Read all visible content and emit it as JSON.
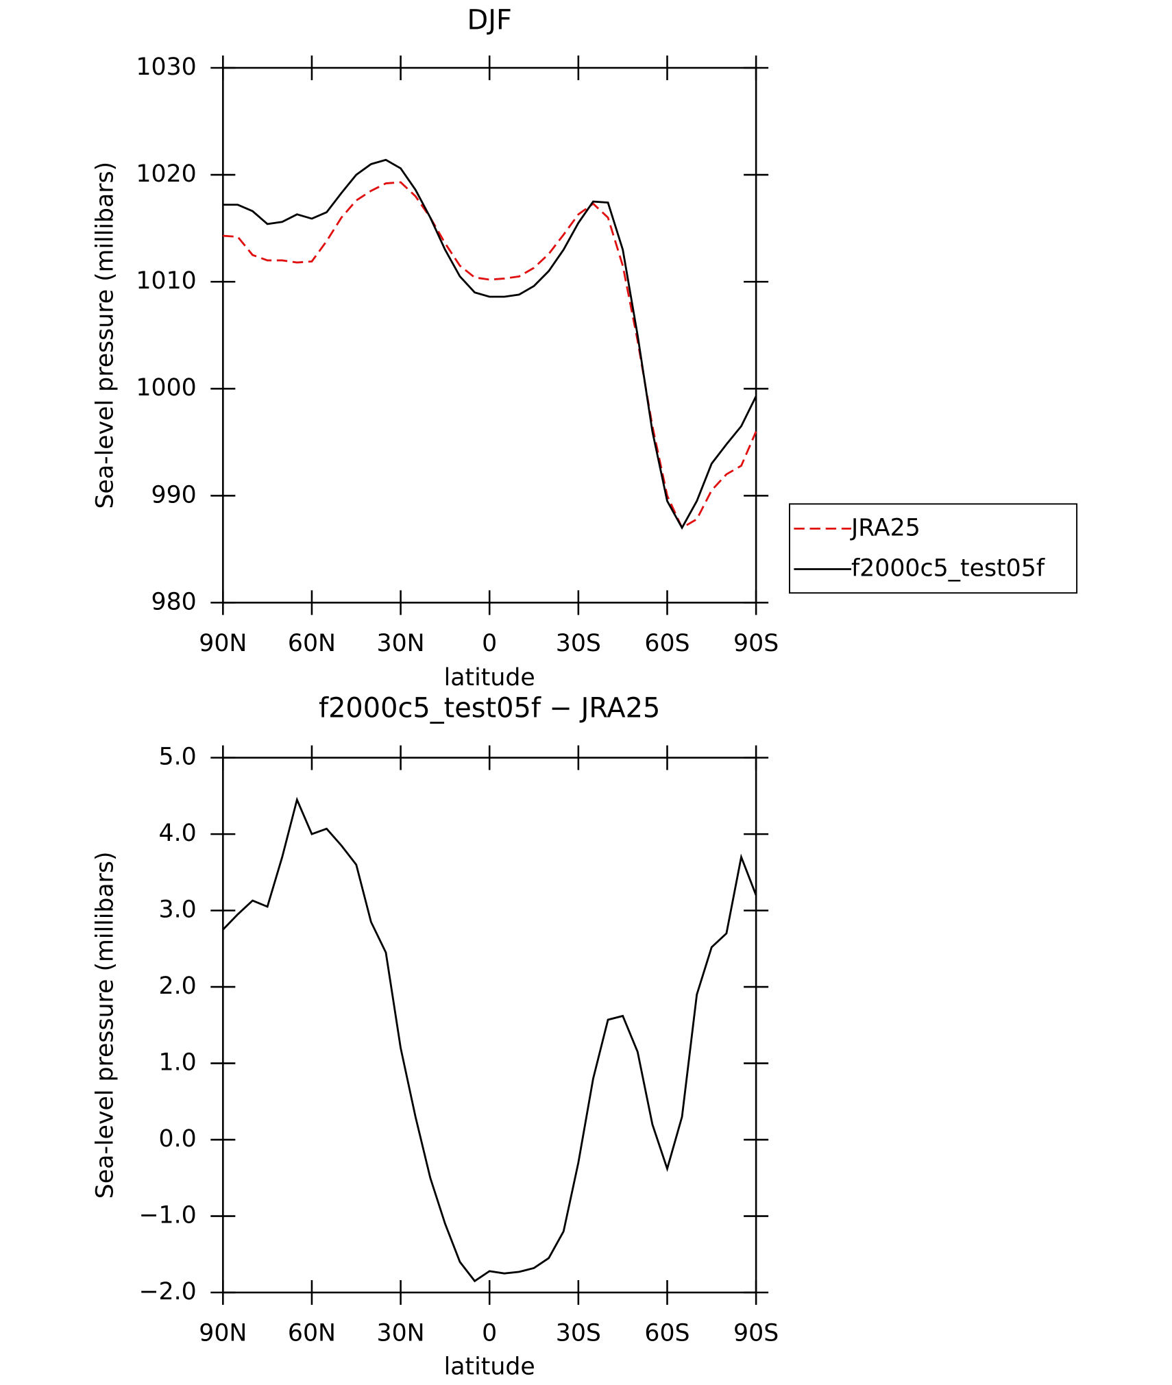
{
  "chart_data": [
    {
      "type": "line",
      "title": "DJF",
      "x_label": "latitude",
      "y_label": "Sea-level pressure (millibars)",
      "x": [
        90,
        85,
        80,
        75,
        70,
        65,
        60,
        55,
        50,
        45,
        40,
        35,
        30,
        25,
        20,
        15,
        10,
        5,
        0,
        -5,
        -10,
        -15,
        -20,
        -25,
        -30,
        -35,
        -40,
        -45,
        -50,
        -55,
        -60,
        -65,
        -70,
        -75,
        -80,
        -85,
        -90
      ],
      "xlim": [
        90,
        -90
      ],
      "xticks": [
        {
          "value": 90,
          "label": "90N"
        },
        {
          "value": 60,
          "label": "60N"
        },
        {
          "value": 30,
          "label": "30N"
        },
        0,
        {
          "value": -30,
          "label": "30S"
        },
        {
          "value": -60,
          "label": "60S"
        },
        {
          "value": -90,
          "label": "90S"
        }
      ],
      "ylim": [
        980,
        1030
      ],
      "yticks": [
        980,
        990,
        1000,
        1010,
        1020,
        1030
      ],
      "legend": "right",
      "series": [
        {
          "name": "JRA25",
          "color": "#e01010",
          "dash": true,
          "values": [
            1014.3,
            1014.2,
            1012.5,
            1012.0,
            1012.0,
            1011.8,
            1011.9,
            1013.8,
            1016.0,
            1017.6,
            1018.5,
            1019.2,
            1019.3,
            1018.0,
            1016.0,
            1013.6,
            1011.5,
            1010.4,
            1010.2,
            1010.3,
            1010.5,
            1011.3,
            1012.6,
            1014.4,
            1016.3,
            1017.3,
            1016.0,
            1011.5,
            1004.5,
            996.5,
            990.0,
            987.0,
            987.8,
            990.5,
            992.0,
            992.8,
            996.0
          ]
        },
        {
          "name": "f2000c5_test05f",
          "color": "#000000",
          "dash": false,
          "values": [
            1017.2,
            1017.2,
            1016.6,
            1015.4,
            1015.6,
            1016.3,
            1015.9,
            1016.5,
            1018.3,
            1020.0,
            1021.0,
            1021.4,
            1020.6,
            1018.6,
            1016.0,
            1013.0,
            1010.5,
            1009.0,
            1008.6,
            1008.6,
            1008.8,
            1009.6,
            1011.0,
            1013.0,
            1015.5,
            1017.5,
            1017.4,
            1013.0,
            1005.0,
            996.0,
            989.5,
            987.0,
            989.5,
            993.0,
            994.8,
            996.5,
            999.3
          ]
        }
      ]
    },
    {
      "type": "line",
      "title": "f2000c5_test05f − JRA25",
      "x_label": "latitude",
      "y_label": "Sea-level pressure (millibars)",
      "x": [
        90,
        85,
        80,
        75,
        70,
        65,
        60,
        55,
        50,
        45,
        40,
        35,
        30,
        25,
        20,
        15,
        10,
        5,
        0,
        -5,
        -10,
        -15,
        -20,
        -25,
        -30,
        -35,
        -40,
        -45,
        -50,
        -55,
        -60,
        -65,
        -70,
        -75,
        -80,
        -85,
        -90
      ],
      "xlim": [
        90,
        -90
      ],
      "xticks": [
        {
          "value": 90,
          "label": "90N"
        },
        {
          "value": 60,
          "label": "60N"
        },
        {
          "value": 30,
          "label": "30N"
        },
        0,
        {
          "value": -30,
          "label": "30S"
        },
        {
          "value": -60,
          "label": "60S"
        },
        {
          "value": -90,
          "label": "90S"
        }
      ],
      "ylim": [
        -2,
        5
      ],
      "yticks": [
        {
          "value": -2,
          "label": "−2.0"
        },
        {
          "value": -1,
          "label": "−1.0"
        },
        {
          "value": 0,
          "label": "0.0"
        },
        {
          "value": 1,
          "label": "1.0"
        },
        {
          "value": 2,
          "label": "2.0"
        },
        {
          "value": 3,
          "label": "3.0"
        },
        {
          "value": 4,
          "label": "4.0"
        },
        {
          "value": 5,
          "label": "5.0"
        }
      ],
      "series": [
        {
          "color": "#000000",
          "dash": false,
          "values": [
            2.75,
            2.95,
            3.13,
            3.05,
            3.7,
            4.45,
            4.0,
            4.07,
            3.85,
            3.6,
            2.85,
            2.45,
            1.2,
            0.3,
            -0.5,
            -1.1,
            -1.6,
            -1.85,
            -1.72,
            -1.75,
            -1.73,
            -1.68,
            -1.55,
            -1.2,
            -0.3,
            0.8,
            1.57,
            1.62,
            1.15,
            0.2,
            -0.38,
            0.3,
            1.9,
            2.52,
            2.7,
            3.7,
            3.2
          ]
        }
      ]
    }
  ]
}
